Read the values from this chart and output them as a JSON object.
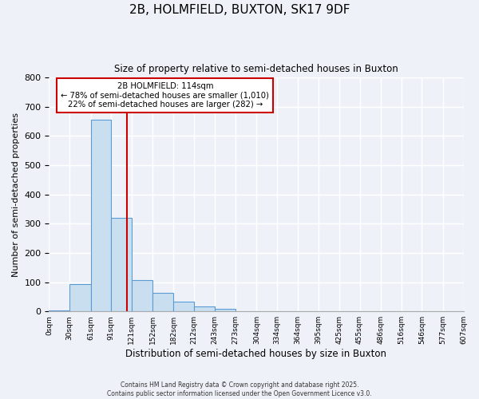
{
  "title": "2B, HOLMFIELD, BUXTON, SK17 9DF",
  "subtitle": "Size of property relative to semi-detached houses in Buxton",
  "xlabel": "Distribution of semi-detached houses by size in Buxton",
  "ylabel": "Number of semi-detached properties",
  "bin_edges": [
    0,
    30,
    61,
    91,
    121,
    152,
    182,
    212,
    243,
    273,
    304,
    334,
    364,
    395,
    425,
    455,
    486,
    516,
    546,
    577,
    607
  ],
  "bar_heights": [
    3,
    93,
    655,
    320,
    108,
    62,
    32,
    18,
    8,
    0,
    0,
    0,
    0,
    0,
    0,
    0,
    0,
    0,
    0,
    0
  ],
  "bar_color": "#c9dff0",
  "bar_edge_color": "#5b9bd5",
  "vline_x": 114,
  "vline_color": "#cc0000",
  "annotation_title": "2B HOLMFIELD: 114sqm",
  "annotation_line1": "← 78% of semi-detached houses are smaller (1,010)",
  "annotation_line2": "22% of semi-detached houses are larger (282) →",
  "annotation_box_color": "#cc0000",
  "ylim": [
    0,
    800
  ],
  "yticks": [
    0,
    100,
    200,
    300,
    400,
    500,
    600,
    700,
    800
  ],
  "tick_labels": [
    "0sqm",
    "30sqm",
    "61sqm",
    "91sqm",
    "121sqm",
    "152sqm",
    "182sqm",
    "212sqm",
    "243sqm",
    "273sqm",
    "304sqm",
    "334sqm",
    "364sqm",
    "395sqm",
    "425sqm",
    "455sqm",
    "486sqm",
    "516sqm",
    "546sqm",
    "577sqm",
    "607sqm"
  ],
  "background_color": "#eef2f8",
  "footer1": "Contains HM Land Registry data © Crown copyright and database right 2025.",
  "footer2": "Contains public sector information licensed under the Open Government Licence v3.0."
}
